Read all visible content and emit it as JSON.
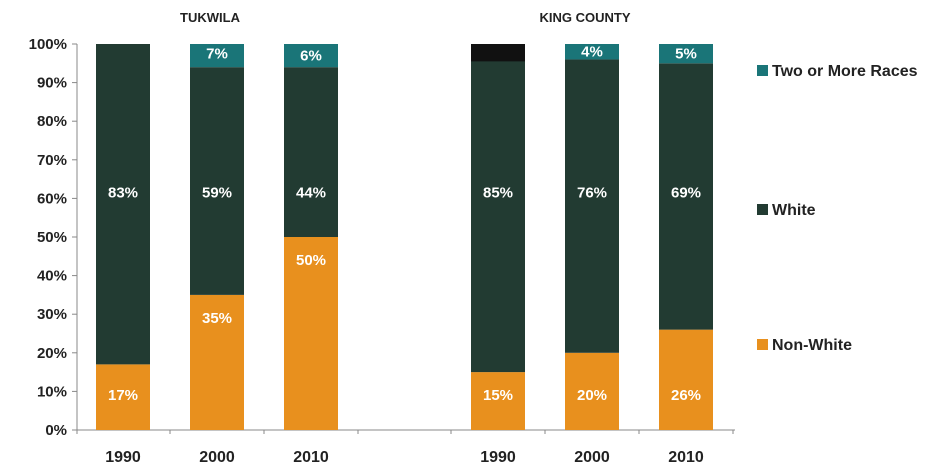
{
  "chart_data": {
    "type": "bar",
    "stacked": true,
    "percent": true,
    "groups": [
      {
        "name": "TUKWILA",
        "categories": [
          "1990",
          "2000",
          "2010"
        ]
      },
      {
        "name": "KING COUNTY",
        "categories": [
          "1990",
          "2000",
          "2010"
        ]
      }
    ],
    "series": [
      {
        "name": "Non-White",
        "color": "#e8901e",
        "values": [
          17,
          35,
          50,
          15,
          20,
          26
        ]
      },
      {
        "name": "White",
        "color": "#223b32",
        "values": [
          83,
          59,
          44,
          85,
          76,
          69
        ]
      },
      {
        "name": "Two or More Races",
        "color": "#1a7578",
        "values": [
          0,
          7,
          6,
          0,
          4,
          5
        ]
      }
    ],
    "data_labels": {
      "Non-White": [
        "17%",
        "35%",
        "50%",
        "15%",
        "20%",
        "26%"
      ],
      "White": [
        "83%",
        "59%",
        "44%",
        "85%",
        "76%",
        "69%"
      ],
      "Two or More Races": [
        "",
        "7%",
        "6%",
        "",
        "4%",
        "5%"
      ]
    },
    "extra_mark": {
      "bar": 3,
      "color": "#111111",
      "from": 95.5,
      "to": 100
    },
    "y_ticks": [
      "0%",
      "10%",
      "20%",
      "30%",
      "40%",
      "50%",
      "60%",
      "70%",
      "80%",
      "90%",
      "100%"
    ],
    "ylim": [
      0,
      100
    ],
    "legend": {
      "placement": "right",
      "order": [
        "Two or More Races",
        "White",
        "Non-White"
      ]
    },
    "grid": false
  }
}
